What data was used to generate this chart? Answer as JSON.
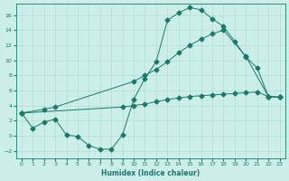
{
  "xlabel": "Humidex (Indice chaleur)",
  "background_color": "#cceee8",
  "grid_color": "#b0ddd4",
  "line_color": "#1a7a6a",
  "xlim": [
    -0.5,
    23.5
  ],
  "ylim": [
    -3.0,
    17.5
  ],
  "xticks": [
    0,
    1,
    2,
    3,
    4,
    5,
    6,
    7,
    8,
    9,
    10,
    11,
    12,
    13,
    14,
    15,
    16,
    17,
    18,
    19,
    20,
    21,
    22,
    23
  ],
  "yticks": [
    -2,
    0,
    2,
    4,
    6,
    8,
    10,
    12,
    14,
    16
  ],
  "curve1_x": [
    0,
    1,
    2,
    3,
    4,
    5,
    6,
    7,
    8,
    9,
    10,
    11,
    12,
    13,
    14,
    15,
    16,
    17,
    18,
    19,
    20,
    21,
    22,
    23
  ],
  "curve1_y": [
    3.0,
    1.0,
    1.8,
    2.2,
    0.1,
    -0.1,
    -1.3,
    -1.8,
    -1.8,
    0.1,
    4.8,
    7.6,
    9.8,
    15.3,
    16.3,
    17.0,
    16.7,
    15.5,
    14.5,
    12.5,
    10.4,
    9.0,
    5.2,
    5.1
  ],
  "curve2_x": [
    0,
    2,
    3,
    10,
    11,
    12,
    13,
    14,
    15,
    16,
    17,
    18,
    20,
    22,
    23
  ],
  "curve2_y": [
    3.0,
    3.5,
    3.8,
    7.2,
    8.0,
    8.8,
    9.8,
    11.0,
    12.0,
    12.8,
    13.5,
    14.0,
    10.5,
    5.2,
    5.1
  ],
  "curve3_x": [
    0,
    9,
    10,
    11,
    12,
    13,
    14,
    15,
    16,
    17,
    18,
    19,
    20,
    21,
    22,
    23
  ],
  "curve3_y": [
    3.0,
    3.8,
    4.0,
    4.2,
    4.5,
    4.8,
    5.0,
    5.2,
    5.3,
    5.4,
    5.5,
    5.6,
    5.7,
    5.8,
    5.2,
    5.1
  ],
  "markersize": 2.5
}
